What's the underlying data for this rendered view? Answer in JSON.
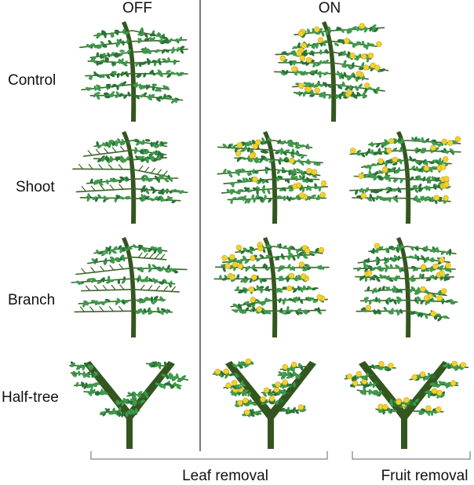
{
  "headers": {
    "off": "OFF",
    "on": "ON"
  },
  "rows": [
    {
      "label": "Control",
      "kind": "control",
      "off": "leaves",
      "leaf_removal": "fruit",
      "fruit_removal": null
    },
    {
      "label": "Shoot",
      "kind": "shoot",
      "off": "mixed",
      "leaf_removal": "mixed",
      "fruit_removal": "mixed"
    },
    {
      "label": "Branch",
      "kind": "branch",
      "off": "mixed",
      "leaf_removal": "mixed",
      "fruit_removal": "mixed"
    },
    {
      "label": "Half-tree",
      "kind": "half",
      "off": "mixed",
      "leaf_removal": "mixed",
      "fruit_removal": "mixed"
    }
  ],
  "footer": {
    "leaf_removal": "Leaf removal",
    "fruit_removal": "Fruit removal"
  },
  "colors": {
    "trunk": "#33561f",
    "leaf": "#3e9a4c",
    "leaf_dark": "#2a7236",
    "twig": "#3d6428",
    "fruit": "#f2d22f",
    "fruit_edge": "#c9a21b",
    "divider": "#222222"
  },
  "icons": [
    "tree-icon",
    "fruit-icon",
    "leaf-icon"
  ]
}
